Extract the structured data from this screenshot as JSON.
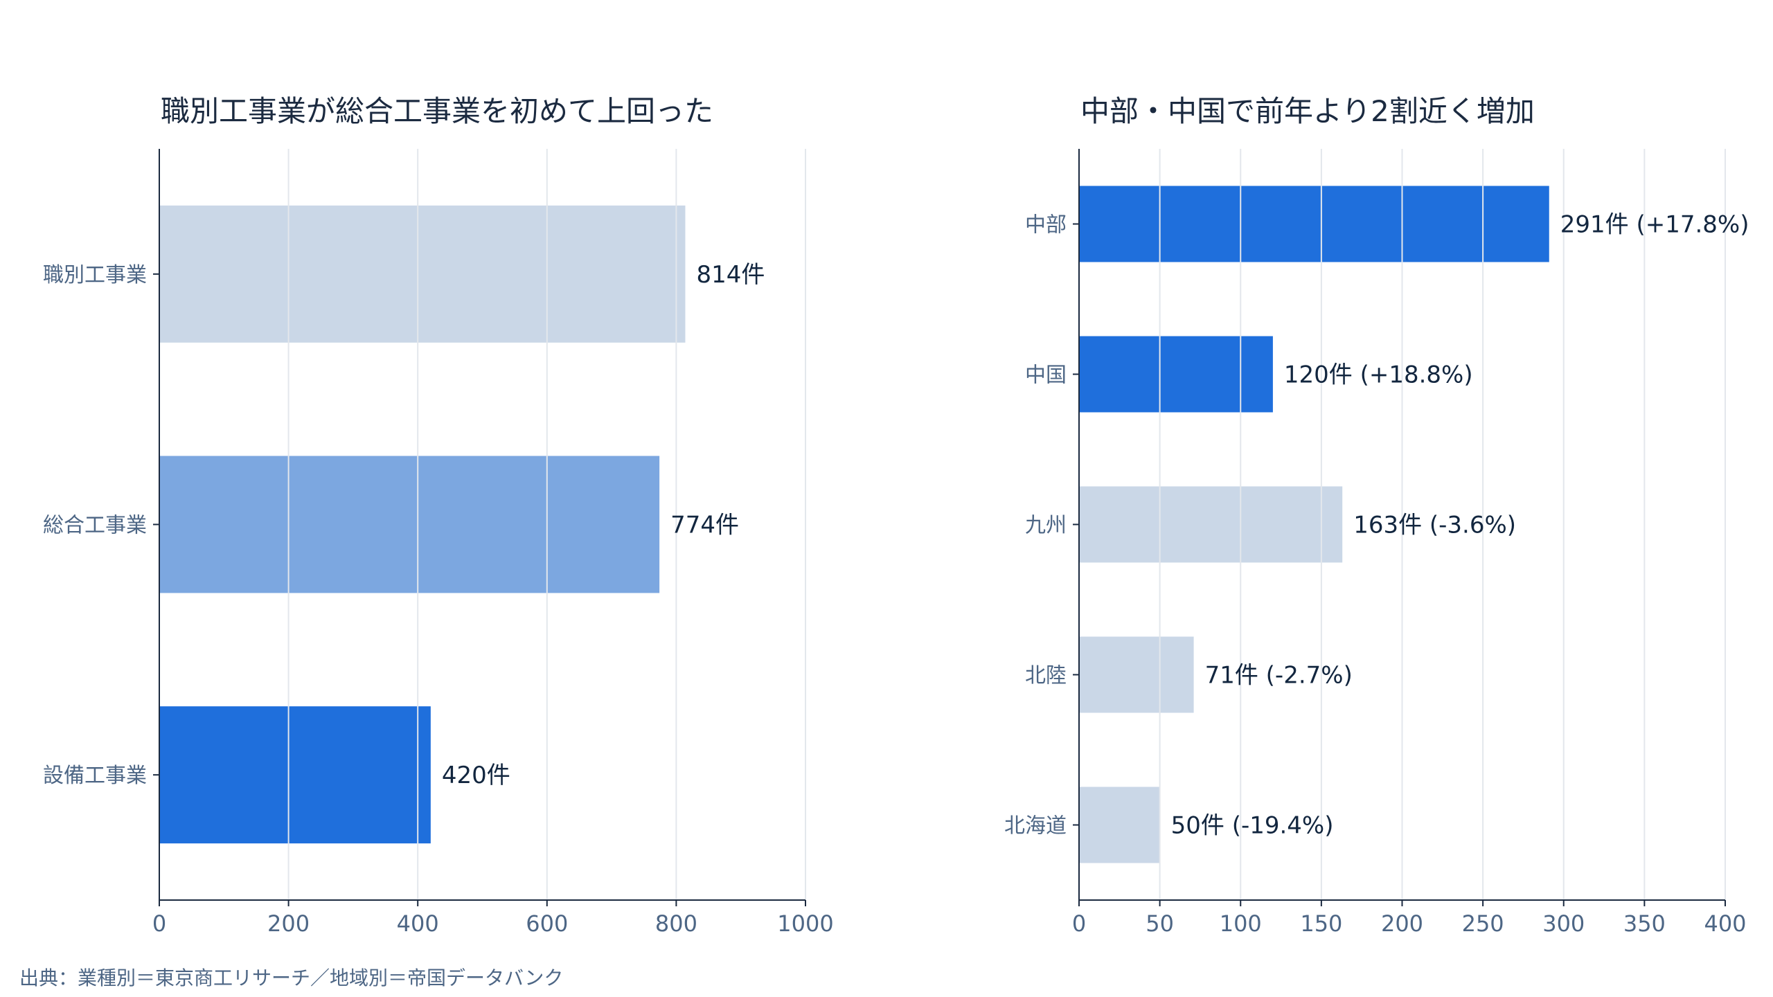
{
  "source": "出典：業種別＝東京商工リサーチ／地域別＝帝国データバンク",
  "chart_data": [
    {
      "type": "bar",
      "orientation": "horizontal",
      "title": "職別工事業が総合工事業を初めて上回った",
      "categories": [
        "職別工事業",
        "総合工事業",
        "設備工事業"
      ],
      "values": [
        814,
        774,
        420
      ],
      "labels": [
        "814件",
        "774件",
        "420件"
      ],
      "colors": [
        "#cad7e7",
        "#7ca7e0",
        "#1f6fdc"
      ],
      "xlim": [
        0,
        1000
      ],
      "xticks": [
        0,
        200,
        400,
        600,
        800,
        1000
      ],
      "grid": true,
      "legend": "none"
    },
    {
      "type": "bar",
      "orientation": "horizontal",
      "title": "中部・中国で前年より2割近く増加",
      "categories": [
        "中部",
        "中国",
        "九州",
        "北陸",
        "北海道"
      ],
      "values": [
        291,
        120,
        163,
        71,
        50
      ],
      "changes_pct": [
        17.8,
        18.8,
        -3.6,
        -2.7,
        -19.4
      ],
      "labels": [
        "291件 (+17.8%)",
        "120件 (+18.8%)",
        "163件 (-3.6%)",
        "71件 (-2.7%)",
        "50件 (-19.4%)"
      ],
      "colors": [
        "#1f6fdc",
        "#1f6fdc",
        "#cad7e7",
        "#cad7e7",
        "#cad7e7"
      ],
      "xlim": [
        0,
        400
      ],
      "xticks": [
        0,
        50,
        100,
        150,
        200,
        250,
        300,
        350,
        400
      ],
      "grid": true,
      "legend": "none"
    }
  ]
}
